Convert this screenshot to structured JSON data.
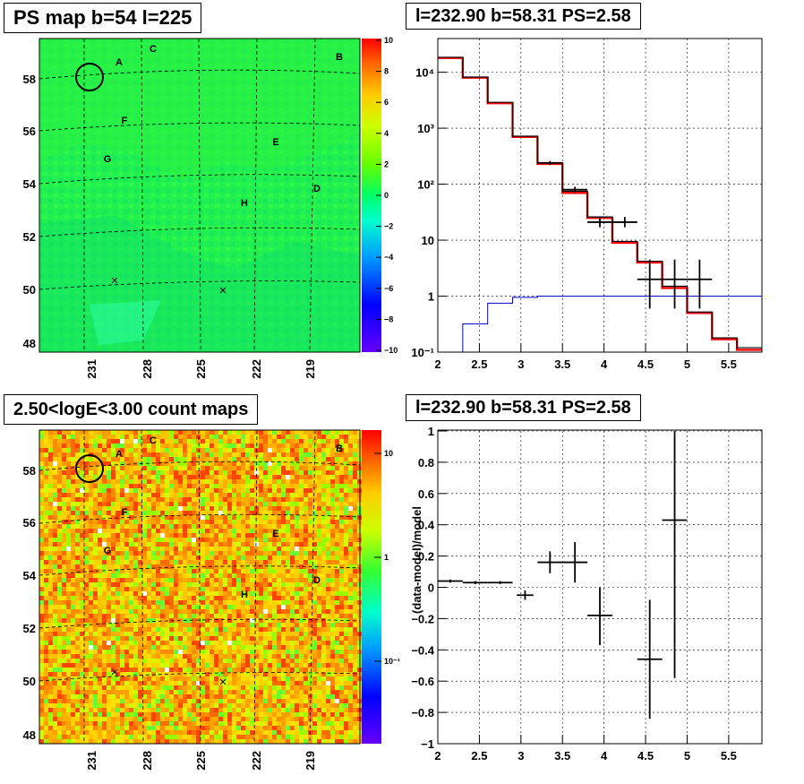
{
  "titles": {
    "ps_map": "PS map b=54 l=225",
    "spectrum": "l=232.90 b=58.31 PS=2.58",
    "count_maps": "2.50<logE<3.00 count maps",
    "residual": "l=232.90 b=58.31 PS=2.58"
  },
  "chart_data": [
    {
      "type": "heatmap",
      "title": "PS map b=54 l=225",
      "xlabel": "",
      "ylabel": "",
      "x_ticks": [
        "231",
        "228",
        "225",
        "222",
        "219"
      ],
      "y_ticks": [
        "58",
        "56",
        "54",
        "52",
        "50",
        "48"
      ],
      "colorbar": {
        "range": [
          -10,
          10
        ],
        "ticks": [
          "10",
          "8",
          "6",
          "4",
          "2",
          "0",
          "−2",
          "−4",
          "−6",
          "−8",
          "−10"
        ]
      },
      "region_labels": [
        "A",
        "B",
        "C",
        "D",
        "E",
        "F",
        "G",
        "H"
      ]
    },
    {
      "type": "line",
      "title": "l=232.90 b=58.31 PS=2.58",
      "xlabel": "",
      "ylabel": "",
      "log_y": true,
      "xlim": [
        2,
        5.9
      ],
      "ylim": [
        0.1,
        40000
      ],
      "x_ticks": [
        "2",
        "2.5",
        "3",
        "3.5",
        "4",
        "4.5",
        "5",
        "5.5"
      ],
      "y_ticks": [
        "10⁴",
        "10³",
        "10²",
        "10",
        "1",
        "10⁻¹"
      ],
      "grid": true,
      "bin_edges": [
        2.0,
        2.3,
        2.6,
        2.9,
        3.2,
        3.5,
        3.8,
        4.1,
        4.4,
        4.7,
        5.0,
        5.3,
        5.6,
        5.9
      ],
      "series": [
        {
          "name": "",
          "color": "#ff0000",
          "kind": "step",
          "values": [
            18000,
            8000,
            2800,
            700,
            230,
            70,
            25,
            9,
            4,
            1.4,
            0.5,
            0.17,
            0.11
          ]
        },
        {
          "name": "",
          "color": "#000000",
          "kind": "step",
          "values": [
            18500,
            8200,
            2900,
            720,
            240,
            75,
            26,
            9.5,
            4.2,
            1.5,
            0.52,
            0.18,
            0.12
          ]
        },
        {
          "name": "",
          "color": "#0000cc",
          "kind": "step",
          "values": [
            0.1,
            0.32,
            0.75,
            0.95,
            1.0,
            1.0,
            1.0,
            1.0,
            1.0,
            1.0,
            1.0,
            1.0,
            1.0
          ]
        },
        {
          "name": "",
          "color": "#000000",
          "kind": "errorbars",
          "points": [
            {
              "x": 3.35,
              "y": 240,
              "xerr": 0.15,
              "ylo": 220,
              "yhi": 260
            },
            {
              "x": 3.65,
              "y": 80,
              "xerr": 0.15,
              "ylo": 70,
              "yhi": 90
            },
            {
              "x": 3.95,
              "y": 21,
              "xerr": 0.15,
              "ylo": 17,
              "yhi": 26
            },
            {
              "x": 4.25,
              "y": 21,
              "xerr": 0.15,
              "ylo": 17,
              "yhi": 26
            },
            {
              "x": 4.55,
              "y": 2,
              "xerr": 0.15,
              "ylo": 0.6,
              "yhi": 4.5
            },
            {
              "x": 4.85,
              "y": 2,
              "xerr": 0.15,
              "ylo": 0.6,
              "yhi": 4.5
            },
            {
              "x": 5.15,
              "y": 2,
              "xerr": 0.15,
              "ylo": 0.6,
              "yhi": 4.5
            }
          ]
        }
      ]
    },
    {
      "type": "heatmap",
      "title": "2.50<logE<3.00 count maps",
      "xlabel": "",
      "ylabel": "",
      "x_ticks": [
        "231",
        "228",
        "225",
        "222",
        "219"
      ],
      "y_ticks": [
        "58",
        "56",
        "54",
        "52",
        "50",
        "48"
      ],
      "colorbar": {
        "log": true,
        "ticks": [
          "10",
          "1",
          "10⁻¹"
        ]
      },
      "region_labels": [
        "A",
        "B",
        "C",
        "D",
        "E",
        "F",
        "G",
        "H"
      ]
    },
    {
      "type": "scatter",
      "title": "l=232.90 b=58.31 PS=2.58",
      "xlabel": "",
      "ylabel": "(data-model)/model",
      "xlim": [
        2,
        5.9
      ],
      "ylim": [
        -1,
        1
      ],
      "x_ticks": [
        "2",
        "2.5",
        "3",
        "3.5",
        "4",
        "4.5",
        "5",
        "5.5"
      ],
      "y_ticks": [
        "1",
        "0.8",
        "0.6",
        "0.4",
        "0.2",
        "0",
        "−0.2",
        "−0.4",
        "−0.6",
        "−0.8",
        "−1"
      ],
      "grid": true,
      "series": [
        {
          "name": "",
          "points": [
            {
              "x": 2.15,
              "y": 0.04,
              "xerr": 0.15,
              "ylo": 0.03,
              "yhi": 0.05
            },
            {
              "x": 2.45,
              "y": 0.03,
              "xerr": 0.15,
              "ylo": 0.02,
              "yhi": 0.04
            },
            {
              "x": 2.75,
              "y": 0.03,
              "xerr": 0.15,
              "ylo": 0.02,
              "yhi": 0.04
            },
            {
              "x": 3.05,
              "y": -0.05,
              "xerr": 0.1,
              "ylo": -0.08,
              "yhi": -0.02
            },
            {
              "x": 3.35,
              "y": 0.16,
              "xerr": 0.15,
              "ylo": 0.09,
              "yhi": 0.23
            },
            {
              "x": 3.65,
              "y": 0.16,
              "xerr": 0.15,
              "ylo": 0.03,
              "yhi": 0.29
            },
            {
              "x": 3.95,
              "y": -0.18,
              "xerr": 0.15,
              "ylo": -0.37,
              "yhi": 0.0
            },
            {
              "x": 4.55,
              "y": -0.46,
              "xerr": 0.15,
              "ylo": -0.84,
              "yhi": -0.08
            },
            {
              "x": 4.85,
              "y": 0.43,
              "xerr": 0.15,
              "ylo": -0.58,
              "yhi": 1.0
            }
          ]
        }
      ]
    }
  ]
}
